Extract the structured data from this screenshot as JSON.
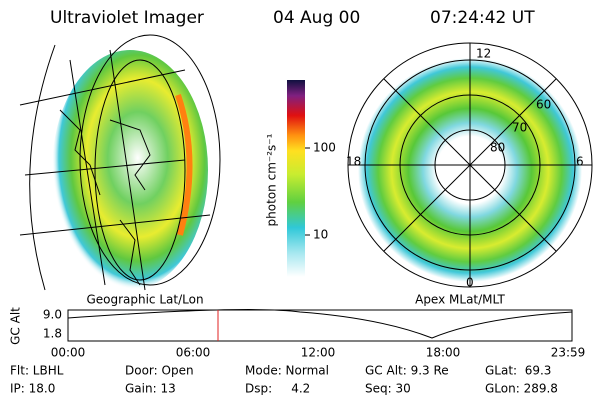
{
  "header": {
    "instrument": "Ultraviolet Imager",
    "date": "04 Aug 00",
    "time": "07:24:42 UT"
  },
  "geo_panel": {
    "label": "Geographic Lat/Lon"
  },
  "polar_panel": {
    "label": "Apex MLat/MLT",
    "mlt_labels": [
      "12",
      "18",
      "6",
      "0"
    ],
    "lat_labels": [
      "60",
      "70",
      "80"
    ]
  },
  "colorbar": {
    "label": "photon cm⁻²s⁻¹",
    "ticks": [
      "100",
      "10"
    ]
  },
  "altitude_plot": {
    "axis_label": "GC Alt",
    "yticks": [
      "9.0",
      "1.8"
    ],
    "xticks": [
      "00:00",
      "06:00",
      "12:00",
      "18:00",
      "23:59"
    ]
  },
  "info": {
    "rows": [
      [
        "Flt: LBHL",
        "Door: Open",
        "Mode: Normal",
        "GC Alt: 9.3 Re",
        "GLat:  69.3"
      ],
      [
        "IP: 18.0",
        "Gain: 13",
        "Dsp:     4.2",
        "Seq: 30",
        "GLon: 289.8"
      ]
    ]
  }
}
